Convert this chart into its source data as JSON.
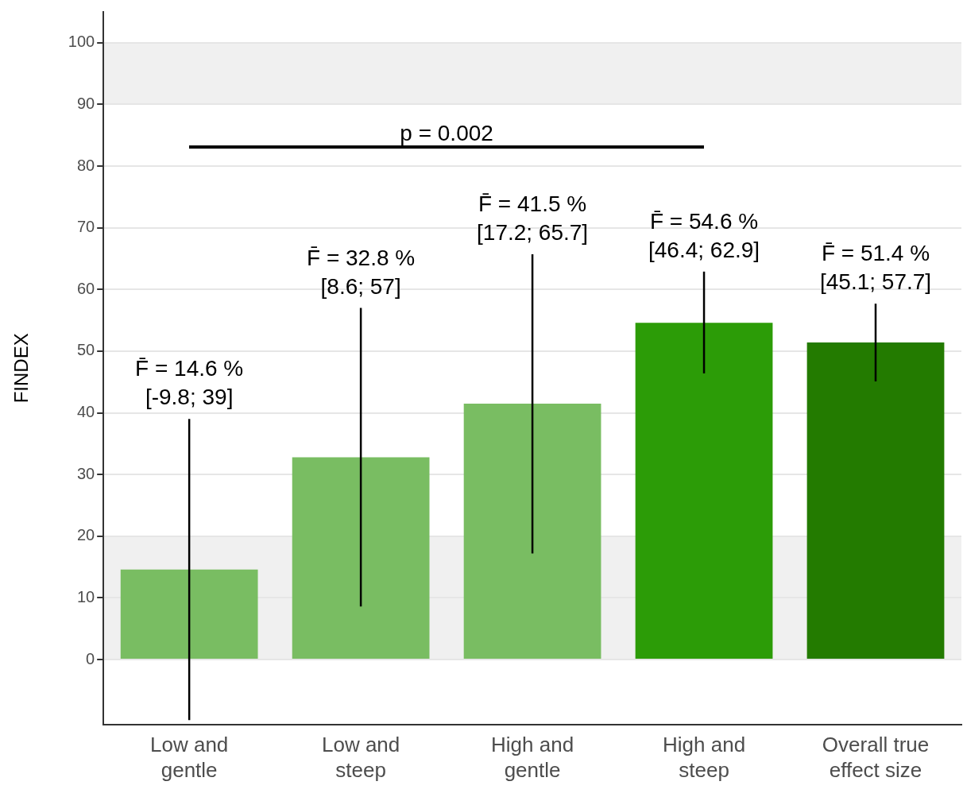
{
  "chart_data": {
    "type": "bar",
    "ylabel": "FINDEX",
    "categories": [
      "Low and gentle",
      "Low and steep",
      "High and gentle",
      "High and steep",
      "Overall true effect size"
    ],
    "values": [
      14.6,
      32.8,
      41.5,
      54.6,
      51.4
    ],
    "colors": [
      "#79bd62",
      "#79bd62",
      "#79bd62",
      "#2c9c07",
      "#237b00"
    ],
    "errors": [
      [
        -9.8,
        39
      ],
      [
        8.6,
        57
      ],
      [
        17.2,
        65.7
      ],
      [
        46.4,
        62.9
      ],
      [
        45.1,
        57.7
      ]
    ],
    "ylim": [
      -10.5,
      105
    ],
    "yticks": [
      0,
      10,
      20,
      30,
      40,
      50,
      60,
      70,
      80,
      90,
      100
    ],
    "bands": [
      {
        "axis": "y",
        "from": 0,
        "to": 20,
        "color": "#f0f0f0"
      },
      {
        "axis": "y",
        "from": 90,
        "to": 100,
        "color": "#f0f0f0"
      }
    ],
    "annotations": [
      "p = 0.002",
      {
        "text": "F̄ = 14.6 %\n[-9.8; 39]",
        "x": "Low and gentle",
        "y": 39
      },
      {
        "text": "F̄ = 32.8 %\n[8.6; 57]",
        "x": "Low and steep",
        "y": 57
      },
      {
        "text": "F̄ = 41.5 %\n[17.2; 65.7]",
        "x": "High and gentle",
        "y": 65.7
      },
      {
        "text": "F̄ = 54.6 %\n[46.4; 62.9]",
        "x": "High and steep",
        "y": 62.9
      },
      {
        "text": "F̄ = 51.4 %\n[45.1; 57.7]",
        "x": "Overall true effect size",
        "y": 57.7
      }
    ],
    "grid": "y",
    "legend": false
  }
}
